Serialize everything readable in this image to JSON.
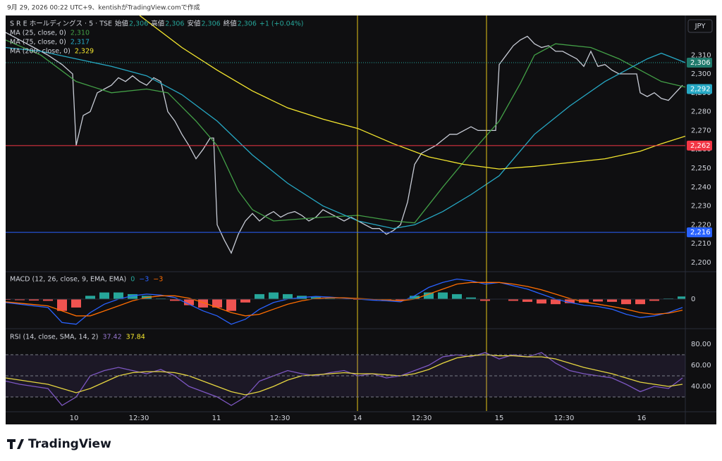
{
  "header": {
    "credit": "9月 29, 2026 00:22 UTC+9、kentishがTradingView.comで作成"
  },
  "legend": {
    "symbol": "S R E ホールディングス · 5 · TSE",
    "fields": [
      {
        "name": "始値",
        "value": "2,306"
      },
      {
        "name": "高値",
        "value": "2,306"
      },
      {
        "name": "安値",
        "value": "2,306"
      },
      {
        "name": "終値",
        "value": "2,306"
      }
    ],
    "change": "+1 (+0.04%)"
  },
  "currency": "JPY",
  "brand": "TradingView",
  "chart_data": [
    {
      "type": "line",
      "xlim": [
        0,
        192.8
      ],
      "ylim": [
        2195.5,
        2331
      ],
      "yticks": [
        {
          "value": 2200,
          "label": "2,200"
        },
        {
          "value": 2210,
          "label": "2,210"
        },
        {
          "value": 2220,
          "label": "2,220"
        },
        {
          "value": 2230,
          "label": "2,230"
        },
        {
          "value": 2240,
          "label": "2,240"
        },
        {
          "value": 2250,
          "label": "2,250"
        },
        {
          "value": 2260,
          "label": "2,260"
        },
        {
          "value": 2270,
          "label": "2,270"
        },
        {
          "value": 2280,
          "label": "2,280"
        },
        {
          "value": 2290,
          "label": "2,290"
        },
        {
          "value": 2300,
          "label": "2,300"
        },
        {
          "value": 2310,
          "label": "2,310"
        }
      ],
      "xticks": [
        {
          "value": 19.4,
          "label": "10"
        },
        {
          "value": 37.8,
          "label": "12:30"
        },
        {
          "value": 59.8,
          "label": "11"
        },
        {
          "value": 77.8,
          "label": "12:30"
        },
        {
          "value": 99.8,
          "label": "14"
        },
        {
          "value": 118,
          "label": "12:30"
        },
        {
          "value": 140,
          "label": "15"
        },
        {
          "value": 158.4,
          "label": "12:30"
        },
        {
          "value": 180.4,
          "label": "16"
        }
      ],
      "series": [
        {
          "color": "#c8ccd6",
          "x": [
            0,
            4,
            8,
            12,
            16,
            19,
            20,
            22,
            24,
            26,
            28,
            30,
            32,
            34,
            36,
            38,
            40,
            42,
            44,
            46,
            48,
            50,
            52,
            54,
            56,
            58,
            59,
            60,
            62,
            64,
            66,
            68,
            70,
            72,
            74,
            76,
            78,
            80,
            82,
            84,
            86,
            88,
            90,
            92,
            94,
            96,
            98,
            100,
            102,
            104,
            106,
            108,
            110,
            112,
            114,
            116,
            118,
            120,
            122,
            124,
            126,
            128,
            130,
            132,
            134,
            139,
            140,
            142,
            144,
            146,
            148,
            150,
            152,
            154,
            156,
            158,
            160,
            162,
            164,
            166,
            168,
            170,
            172,
            174,
            179,
            180,
            182,
            184,
            186,
            188,
            190,
            192
          ],
          "values": [
            2322,
            2318,
            2314,
            2310,
            2305,
            2300,
            2262,
            2278,
            2280,
            2290,
            2292,
            2294,
            2298,
            2296,
            2299,
            2296,
            2294,
            2298,
            2296,
            2280,
            2275,
            2268,
            2262,
            2255,
            2260,
            2266,
            2266,
            2220,
            2212,
            2205,
            2215,
            2222,
            2226,
            2222,
            2225,
            2227,
            2224,
            2226,
            2227,
            2225,
            2222,
            2224,
            2228,
            2226,
            2224,
            2222,
            2224,
            2222,
            2220,
            2218,
            2218,
            2215,
            2217,
            2220,
            2232,
            2252,
            2258,
            2260,
            2262,
            2265,
            2268,
            2268,
            2270,
            2272,
            2270,
            2270,
            2305,
            2310,
            2315,
            2318,
            2320,
            2316,
            2314,
            2315,
            2312,
            2312,
            2310,
            2308,
            2304,
            2312,
            2304,
            2305,
            2302,
            2300,
            2300,
            2290,
            2288,
            2290,
            2287,
            2286,
            2290,
            2294
          ]
        },
        {
          "name": "MA (25, close, 0)",
          "legend_value": "2,310",
          "color": "#43a047",
          "x": [
            0,
            10,
            20,
            30,
            40,
            46,
            54,
            60,
            66,
            70,
            76,
            90,
            100,
            110,
            116,
            124,
            132,
            140,
            146,
            150,
            156,
            166,
            174,
            180,
            186,
            192.8
          ],
          "values": [
            2318,
            2310,
            2296,
            2290,
            2292,
            2290,
            2275,
            2262,
            2238,
            2228,
            2222,
            2224,
            2225,
            2222,
            2221,
            2240,
            2258,
            2275,
            2295,
            2310,
            2316,
            2314,
            2308,
            2302,
            2296,
            2293
          ]
        },
        {
          "name": "MA (75, close, 0)",
          "legend_value": "2,317",
          "color": "#26a8c4",
          "x": [
            0,
            10,
            20,
            30,
            40,
            50,
            60,
            70,
            80,
            90,
            100,
            110,
            116,
            124,
            132,
            140,
            150,
            160,
            170,
            176,
            182,
            186,
            192.8
          ],
          "values": [
            2314,
            2312,
            2308,
            2304,
            2299,
            2289,
            2275,
            2257,
            2242,
            2230,
            2222,
            2218,
            2220,
            2227,
            2236,
            2246,
            2268,
            2283,
            2296,
            2302,
            2308,
            2311,
            2306
          ]
        },
        {
          "name": "MA (200, close, 0)",
          "legend_value": "2,329",
          "color": "#f5e72e",
          "x": [
            38,
            50,
            60,
            70,
            80,
            90,
            100,
            110,
            120,
            130,
            140,
            150,
            160,
            170,
            180,
            186,
            192.8
          ],
          "values": [
            2331,
            2314,
            2302,
            2291,
            2282,
            2276,
            2271,
            2263,
            2256,
            2252,
            2249.6,
            2251,
            2253,
            2255,
            2259,
            2263,
            2267
          ]
        }
      ],
      "hlines": [
        {
          "value": 2262,
          "label": "2,262",
          "color": "#f23645"
        },
        {
          "value": 2216,
          "label": "2,216",
          "color": "#2962ff"
        }
      ],
      "price_markers": [
        {
          "value": 2306,
          "label": "2,306",
          "color": "#1f7a6c"
        },
        {
          "value": 2292,
          "label": "2,292",
          "color": "#26a8c4"
        }
      ],
      "vlines": {
        "color": "#e6c619",
        "x": [
          99.8,
          136.4
        ]
      }
    },
    {
      "type": "macd",
      "title": "MACD (12, 26, close, 9, EMA, EMA)",
      "legend_values": [
        {
          "label": "0",
          "color": "#26a69a"
        },
        {
          "label": "−3",
          "color": "#2962ff"
        },
        {
          "label": "−3",
          "color": "#ff6d00"
        }
      ],
      "xlim": [
        0,
        192.8
      ],
      "ylim": [
        -8.4,
        8
      ],
      "yticks": [
        0
      ],
      "x": [
        0,
        4,
        8,
        12,
        16,
        20,
        24,
        28,
        32,
        36,
        40,
        44,
        48,
        52,
        56,
        60,
        64,
        68,
        72,
        76,
        80,
        84,
        88,
        92,
        96,
        100,
        104,
        108,
        112,
        116,
        120,
        124,
        128,
        132,
        136,
        140,
        144,
        148,
        152,
        156,
        160,
        164,
        168,
        172,
        176,
        180,
        184,
        188,
        192
      ],
      "histogram": {
        "up": "#26a69a",
        "down": "#ef5350",
        "values": [
          -0.2,
          -0.3,
          -0.4,
          -0.5,
          -3.5,
          -2.5,
          1,
          2,
          2,
          1.5,
          1,
          0.2,
          -0.5,
          -1.8,
          -2.5,
          -2.5,
          -3.5,
          -1,
          1.5,
          2,
          1.5,
          1,
          0.6,
          0.2,
          -0.1,
          -0.2,
          -0.3,
          -0.3,
          -0.3,
          1,
          2,
          2,
          1.5,
          0.5,
          -0.5,
          0,
          -0.5,
          -0.8,
          -1.3,
          -1.5,
          -1.2,
          -1,
          -0.7,
          -0.8,
          -1.5,
          -1.5,
          -0.5,
          0.2,
          0.8
        ]
      },
      "series": [
        {
          "color": "#2962ff",
          "values": [
            -1,
            -1.5,
            -2,
            -2.5,
            -7,
            -7.5,
            -4,
            -1.5,
            0,
            1,
            1.5,
            1.2,
            0.5,
            -1.5,
            -3.5,
            -5,
            -7.5,
            -6,
            -3,
            -1,
            0,
            0.5,
            0.8,
            0.6,
            0.3,
            0,
            -0.3,
            -0.5,
            -0.8,
            1,
            3.5,
            5,
            6,
            5.5,
            4.5,
            5,
            4,
            3,
            1.5,
            0,
            -1,
            -1.8,
            -2.2,
            -3,
            -4.5,
            -5.5,
            -5,
            -4,
            -2.5
          ]
        },
        {
          "color": "#ff6d00",
          "values": [
            -0.8,
            -1.2,
            -1.6,
            -2,
            -3.5,
            -5,
            -5,
            -3.5,
            -2,
            -0.5,
            0.5,
            1,
            1,
            0.3,
            -1,
            -2.5,
            -4,
            -5,
            -4.5,
            -3,
            -1.5,
            -0.5,
            0.2,
            0.4,
            0.4,
            0.2,
            0,
            -0.2,
            -0.5,
            0,
            1.5,
            3,
            4.5,
            5,
            5,
            5,
            4.5,
            3.8,
            2.8,
            1.5,
            0.2,
            -0.8,
            -1.5,
            -2.2,
            -3,
            -4,
            -4.5,
            -4.2,
            -3.3
          ]
        }
      ]
    },
    {
      "type": "rsi",
      "title": "RSI (14, close, SMA, 14, 2)",
      "legend_values": [
        {
          "label": "37.42",
          "color": "#9575cd"
        },
        {
          "label": "37.84",
          "color": "#f5e72e"
        }
      ],
      "xlim": [
        0,
        192.8
      ],
      "ylim": [
        16.7,
        93.3
      ],
      "yticks": [
        {
          "value": 40,
          "label": "40.00"
        },
        {
          "value": 60,
          "label": "60.00"
        },
        {
          "value": 80,
          "label": "80.00"
        }
      ],
      "bands": [
        30,
        50,
        70
      ],
      "x": [
        0,
        4,
        8,
        12,
        16,
        20,
        24,
        28,
        32,
        36,
        40,
        44,
        48,
        52,
        56,
        60,
        64,
        68,
        72,
        76,
        80,
        84,
        88,
        92,
        96,
        100,
        104,
        108,
        112,
        116,
        120,
        124,
        128,
        132,
        136,
        140,
        144,
        148,
        152,
        156,
        160,
        164,
        168,
        172,
        176,
        180,
        184,
        188,
        192
      ],
      "series": [
        {
          "color": "#7e57c2",
          "values": [
            45,
            42,
            40,
            38,
            22,
            30,
            50,
            55,
            58,
            55,
            52,
            56,
            50,
            40,
            35,
            30,
            22,
            30,
            45,
            50,
            55,
            52,
            50,
            53,
            55,
            50,
            52,
            48,
            50,
            55,
            60,
            68,
            70,
            68,
            72,
            66,
            70,
            68,
            72,
            62,
            55,
            52,
            50,
            48,
            42,
            35,
            40,
            38,
            48
          ]
        },
        {
          "color": "#f5e72e",
          "values": [
            48,
            46,
            44,
            42,
            38,
            34,
            38,
            44,
            50,
            53,
            54,
            54,
            53,
            50,
            45,
            40,
            35,
            32,
            35,
            40,
            46,
            50,
            51,
            52,
            53,
            52,
            52,
            51,
            50,
            52,
            56,
            62,
            67,
            69,
            70,
            69,
            69,
            68,
            68,
            66,
            62,
            58,
            55,
            52,
            48,
            44,
            42,
            40,
            42
          ]
        }
      ]
    }
  ]
}
